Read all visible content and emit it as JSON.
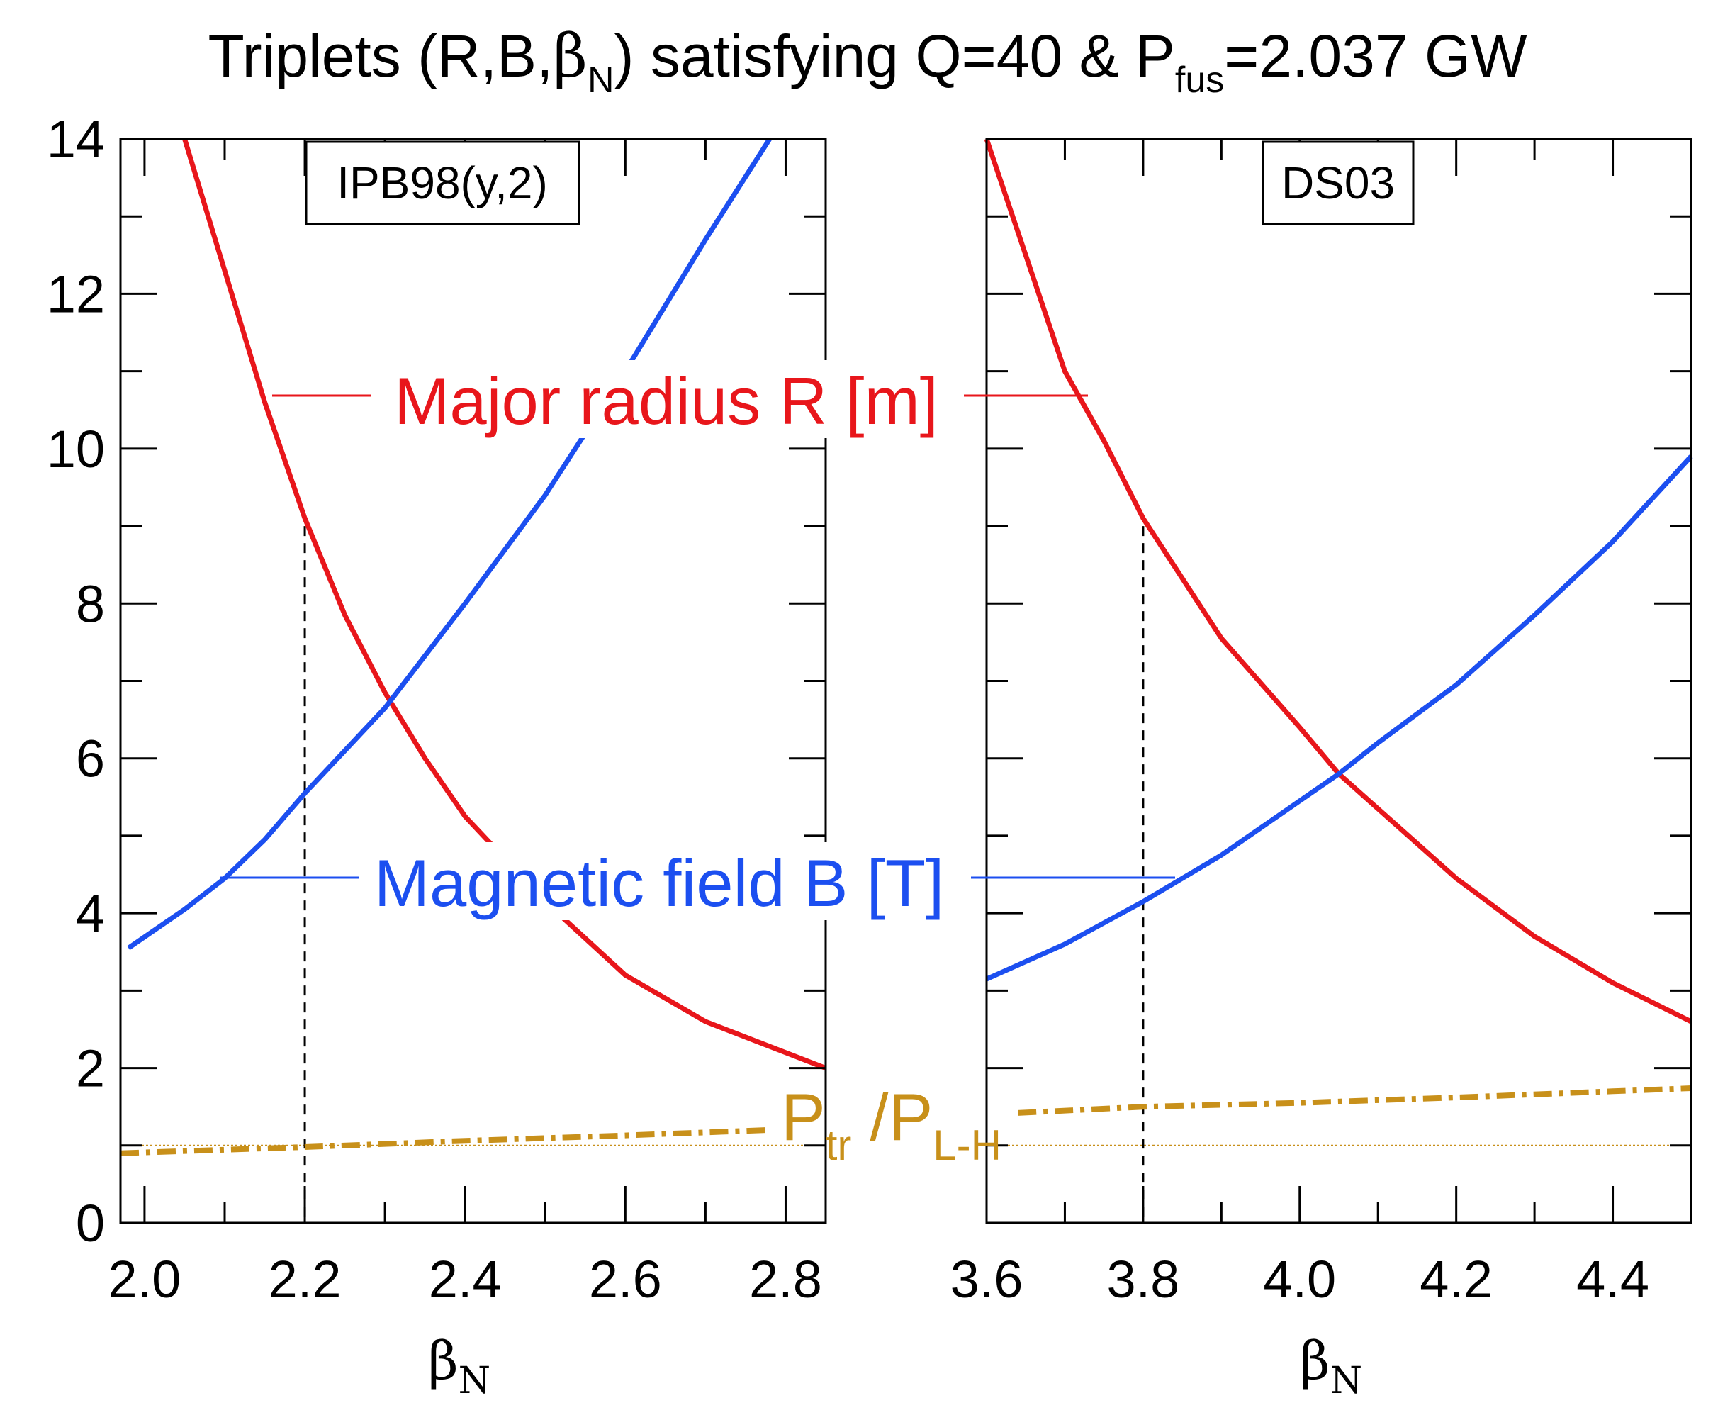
{
  "title": {
    "prefix": "Triplets (R,B,",
    "beta_symbol": "β",
    "beta_sub": "N",
    "middle": ") satisfying Q=40 & P",
    "p_sub": "fus",
    "suffix": "=2.037 GW"
  },
  "colors": {
    "R": "#e8161b",
    "B": "#1c4ff0",
    "ratio": "#c8901a",
    "axes": "#000000"
  },
  "chart_data": [
    {
      "type": "line",
      "panel_label": "IPB98(y,2)",
      "xlabel": "β_N",
      "ylabel": "",
      "xlim": [
        1.97,
        2.85
      ],
      "ylim": [
        0,
        14
      ],
      "xticks": [
        "2.0",
        "2.2",
        "2.4",
        "2.6",
        "2.8"
      ],
      "yticks": [
        "0",
        "2",
        "4",
        "6",
        "8",
        "10",
        "12",
        "14"
      ],
      "vline_x": 2.2,
      "series": [
        {
          "name": "Major radius R [m]",
          "color_key": "R",
          "style": "solid",
          "x": [
            2.05,
            2.1,
            2.15,
            2.2,
            2.25,
            2.3,
            2.35,
            2.4,
            2.5,
            2.6,
            2.7,
            2.85
          ],
          "y": [
            14.0,
            12.3,
            10.6,
            9.1,
            7.85,
            6.85,
            6.0,
            5.25,
            4.15,
            3.2,
            2.6,
            2.0
          ]
        },
        {
          "name": "Magnetic field B [T]",
          "color_key": "B",
          "style": "solid",
          "x": [
            1.98,
            2.05,
            2.1,
            2.15,
            2.2,
            2.25,
            2.3,
            2.4,
            2.5,
            2.6,
            2.7,
            2.78
          ],
          "y": [
            3.55,
            4.05,
            4.45,
            4.95,
            5.55,
            6.1,
            6.65,
            8.0,
            9.4,
            11.0,
            12.7,
            14.0
          ]
        },
        {
          "name": "P_tr/P_L-H",
          "color_key": "ratio",
          "style": "dashdot",
          "x": [
            1.97,
            2.2,
            2.4,
            2.6,
            2.78
          ],
          "y": [
            0.9,
            0.98,
            1.06,
            1.13,
            1.2
          ]
        }
      ],
      "hline_y": 1.0
    },
    {
      "type": "line",
      "panel_label": "DS03",
      "xlabel": "β_N",
      "ylabel": "",
      "xlim": [
        3.6,
        4.5
      ],
      "ylim": [
        0,
        14
      ],
      "xticks": [
        "3.6",
        "3.8",
        "4.0",
        "4.2",
        "4.4"
      ],
      "yticks": [
        "0",
        "2",
        "4",
        "6",
        "8",
        "10",
        "12",
        "14"
      ],
      "vline_x": 3.8,
      "series": [
        {
          "name": "Major radius R [m]",
          "color_key": "R",
          "style": "solid",
          "x": [
            3.6,
            3.65,
            3.7,
            3.75,
            3.8,
            3.9,
            4.0,
            4.05,
            4.1,
            4.2,
            4.3,
            4.4,
            4.5
          ],
          "y": [
            14.0,
            12.5,
            11.0,
            10.1,
            9.1,
            7.55,
            6.4,
            5.8,
            5.35,
            4.45,
            3.7,
            3.1,
            2.6
          ]
        },
        {
          "name": "Magnetic field B [T]",
          "color_key": "B",
          "style": "solid",
          "x": [
            3.6,
            3.7,
            3.8,
            3.9,
            4.0,
            4.05,
            4.1,
            4.2,
            4.3,
            4.4,
            4.5
          ],
          "y": [
            3.15,
            3.6,
            4.15,
            4.75,
            5.45,
            5.8,
            6.2,
            6.95,
            7.85,
            8.8,
            9.9
          ]
        },
        {
          "name": "P_tr/P_L-H",
          "color_key": "ratio",
          "style": "dashdot",
          "x": [
            3.64,
            3.8,
            4.0,
            4.2,
            4.4,
            4.5
          ],
          "y": [
            1.42,
            1.5,
            1.55,
            1.62,
            1.7,
            1.74
          ]
        }
      ],
      "hline_y": 1.0
    }
  ],
  "annotations": {
    "R_label": "Major radius R [m]",
    "B_label": "Magnetic field B [T]",
    "ratio_label": {
      "p1": "P",
      "sub1": "tr",
      "slash": " /P",
      "sub2": "L-H"
    }
  },
  "axis_titles": {
    "beta": "β",
    "sub": "N"
  }
}
